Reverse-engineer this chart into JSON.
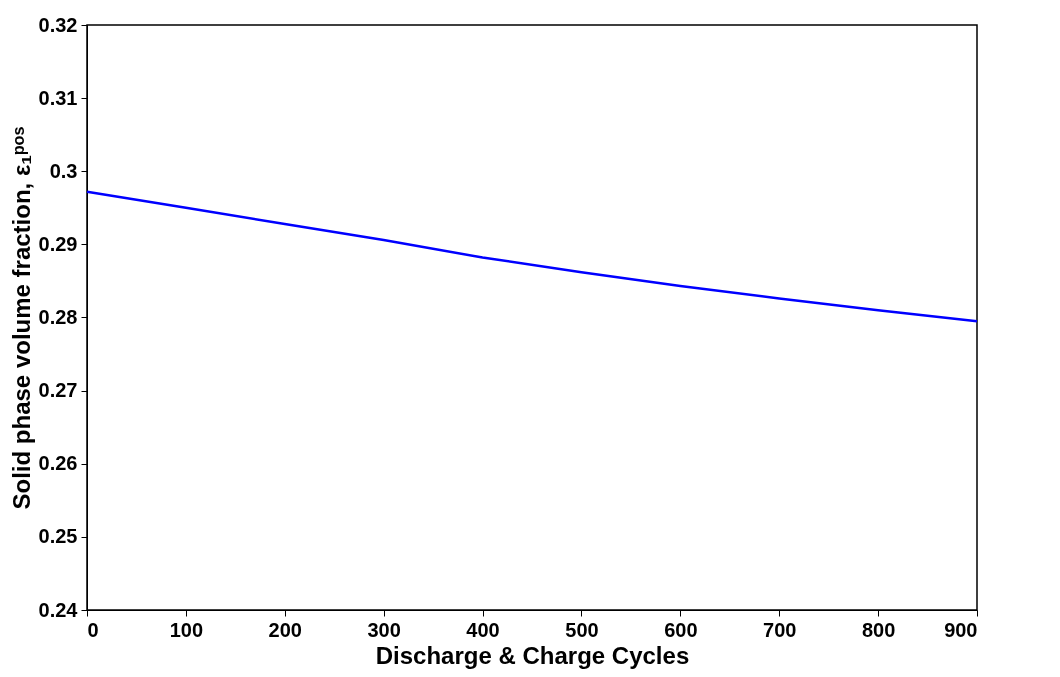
{
  "chart_data": {
    "type": "line",
    "xlabel": "Discharge & Charge Cycles",
    "ylabel": "Solid phase volume fraction, ε₁ᵖᵒˢ",
    "x": [
      0,
      100,
      200,
      300,
      400,
      500,
      600,
      700,
      800,
      900
    ],
    "series": [
      {
        "color": "#0000ff",
        "values": [
          0.2972,
          0.295,
          0.2928,
          0.2906,
          0.2882,
          0.2862,
          0.2843,
          0.2826,
          0.281,
          0.2795
        ]
      }
    ],
    "xlim": [
      0,
      900
    ],
    "xticks": [
      0,
      100,
      200,
      300,
      400,
      500,
      600,
      700,
      800,
      900
    ],
    "ylim": [
      0.24,
      0.32
    ],
    "yticks": [
      0.24,
      0.25,
      0.26,
      0.27,
      0.28,
      0.29,
      0.3,
      0.31,
      0.32
    ],
    "grid": false,
    "marker": "none",
    "line_style": "solid"
  }
}
